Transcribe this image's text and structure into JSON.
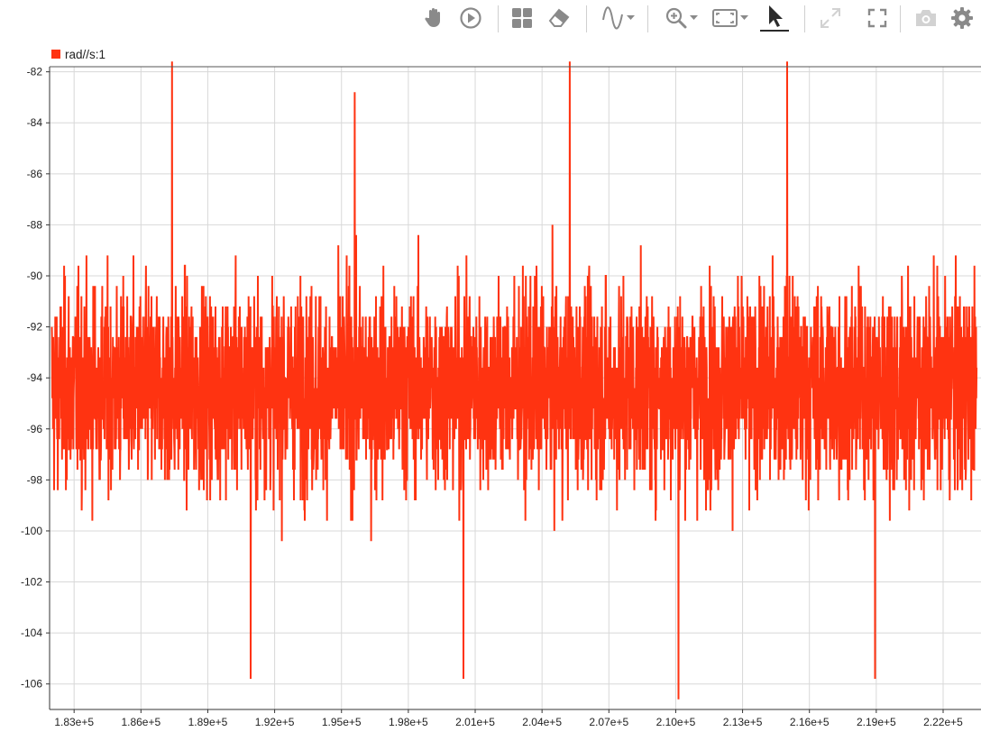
{
  "toolbar": {
    "buttons": [
      {
        "name": "pan-icon",
        "caret": false
      },
      {
        "name": "play-icon",
        "caret": false
      },
      {
        "name": "layout-grid-icon",
        "caret": false
      },
      {
        "name": "eraser-icon",
        "caret": false
      },
      {
        "name": "signal-wave-icon",
        "caret": true
      },
      {
        "name": "zoom-in-icon",
        "caret": true
      },
      {
        "name": "fit-to-view-icon",
        "caret": true
      },
      {
        "name": "cursor-select-icon",
        "caret": false
      },
      {
        "name": "expand-arrows-icon",
        "caret": false
      },
      {
        "name": "fullscreen-icon",
        "caret": false
      },
      {
        "name": "camera-icon",
        "caret": false
      },
      {
        "name": "settings-gear-icon",
        "caret": false
      }
    ],
    "icon_color": "#8a8a8a",
    "disabled_color": "#d2d2d2",
    "active_color": "#2b2b2b"
  },
  "chart_data": {
    "type": "line",
    "series": [
      {
        "name": "rad//s:1",
        "color": "#ff3311",
        "x_range": [
          182000,
          223500
        ],
        "mean": -94.4,
        "typical_band": [
          -99.8,
          -88.2
        ],
        "min": -106.6,
        "max": -82.8
      }
    ],
    "x_ticks": [
      183000,
      186000,
      189000,
      192000,
      195000,
      198000,
      201000,
      204000,
      207000,
      210000,
      213000,
      216000,
      219000,
      222000
    ],
    "x_tick_labels": [
      "1.83e+5",
      "1.86e+5",
      "1.89e+5",
      "1.92e+5",
      "1.95e+5",
      "1.98e+5",
      "2.01e+5",
      "2.04e+5",
      "2.07e+5",
      "2.10e+5",
      "2.13e+5",
      "2.16e+5",
      "2.19e+5",
      "2.22e+5"
    ],
    "y_ticks": [
      -82,
      -84,
      -86,
      -88,
      -90,
      -92,
      -94,
      -96,
      -98,
      -100,
      -102,
      -104,
      -106
    ],
    "y_tick_labels": [
      "-82",
      "-84",
      "-86",
      "-88",
      "-90",
      "-92",
      "-94",
      "-96",
      "-98",
      "-100",
      "-102",
      "-104",
      "-106"
    ],
    "xlim": [
      181900,
      223700
    ],
    "ylim": [
      -107,
      -81.8
    ],
    "grid": true,
    "legend_position": "top-left"
  }
}
